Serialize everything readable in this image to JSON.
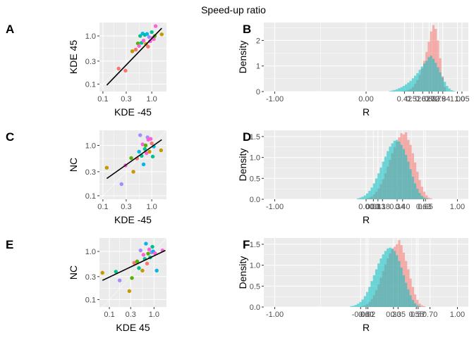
{
  "figure": {
    "title": "Speed-up ratio"
  },
  "colors": {
    "panel_bg": "#ebebeb",
    "grid": "#ffffff",
    "series_1": "#f8766d",
    "series_2": "#00bfc4",
    "point_palette": [
      "#f8766d",
      "#c49a00",
      "#53b400",
      "#00c094",
      "#00b6eb",
      "#a58aff",
      "#fb61d7"
    ],
    "fit_line": "#000000"
  },
  "chart_data": [
    {
      "panel": "A",
      "type": "scatter",
      "xlabel": "KDE -45",
      "ylabel": "KDE 45",
      "scale": "log10",
      "xlim": [
        0.085,
        2.0
      ],
      "ylim": [
        0.07,
        1.9
      ],
      "x_ticks": [
        "0.1",
        "0.3",
        "1.0"
      ],
      "x_tick_values": [
        0.1,
        0.3,
        1.0
      ],
      "y_ticks": [
        "0.1",
        "0.3",
        "1.0"
      ],
      "y_tick_values": [
        0.1,
        0.3,
        1.0
      ],
      "fit_line": {
        "x": [
          0.12,
          1.6
        ],
        "y": [
          0.095,
          1.45
        ]
      },
      "points": [
        {
          "x": 0.1,
          "y": 0.065,
          "c": 1
        },
        {
          "x": 0.21,
          "y": 0.21,
          "c": 0
        },
        {
          "x": 0.29,
          "y": 0.19,
          "c": 0
        },
        {
          "x": 0.4,
          "y": 0.48,
          "c": 1
        },
        {
          "x": 0.47,
          "y": 0.52,
          "c": 0
        },
        {
          "x": 0.52,
          "y": 0.7,
          "c": 2
        },
        {
          "x": 0.55,
          "y": 0.62,
          "c": 6
        },
        {
          "x": 0.58,
          "y": 1.0,
          "c": 3
        },
        {
          "x": 0.62,
          "y": 0.72,
          "c": 3
        },
        {
          "x": 0.65,
          "y": 1.12,
          "c": 4
        },
        {
          "x": 0.68,
          "y": 0.8,
          "c": 6
        },
        {
          "x": 0.72,
          "y": 1.05,
          "c": 3
        },
        {
          "x": 0.76,
          "y": 0.68,
          "c": 1
        },
        {
          "x": 0.8,
          "y": 1.1,
          "c": 4
        },
        {
          "x": 0.84,
          "y": 0.6,
          "c": 0
        },
        {
          "x": 0.88,
          "y": 0.95,
          "c": 5
        },
        {
          "x": 0.93,
          "y": 0.78,
          "c": 6
        },
        {
          "x": 1.0,
          "y": 1.2,
          "c": 3
        },
        {
          "x": 1.05,
          "y": 0.92,
          "c": 6
        },
        {
          "x": 1.1,
          "y": 0.86,
          "c": 6
        },
        {
          "x": 1.15,
          "y": 1.0,
          "c": 2
        },
        {
          "x": 1.2,
          "y": 1.6,
          "c": 6
        },
        {
          "x": 1.6,
          "y": 1.08,
          "c": 1
        }
      ]
    },
    {
      "panel": "B",
      "type": "histogram",
      "xlabel": "R",
      "ylabel": "Density",
      "xlim": [
        -1.12,
        1.12
      ],
      "ylim": [
        0,
        2.7
      ],
      "x_ticks": [
        "-1.00",
        "0.00",
        "0.42",
        "0.52",
        "0.62",
        "0.69",
        "0.72",
        "0.79",
        "0.84",
        "1.00",
        "1.05"
      ],
      "x_tick_values": [
        -1.0,
        0.0,
        0.42,
        0.52,
        0.62,
        0.69,
        0.72,
        0.79,
        0.84,
        1.0,
        1.05
      ],
      "y_ticks": [
        "0",
        "1",
        "2"
      ],
      "y_tick_values": [
        0,
        1,
        2
      ],
      "series": [
        {
          "name": "",
          "x": [
            0.4,
            0.425,
            0.45,
            0.475,
            0.5,
            0.525,
            0.55,
            0.575,
            0.6,
            0.625,
            0.65,
            0.675,
            0.7,
            0.725,
            0.75,
            0.775,
            0.8,
            0.825,
            0.85
          ],
          "values": [
            0.02,
            0.03,
            0.06,
            0.1,
            0.18,
            0.3,
            0.45,
            0.65,
            0.9,
            1.2,
            1.55,
            1.95,
            2.35,
            2.6,
            2.45,
            2.0,
            1.3,
            0.6,
            0.18
          ]
        },
        {
          "name": "",
          "x": [
            0.25,
            0.275,
            0.3,
            0.325,
            0.35,
            0.375,
            0.4,
            0.425,
            0.45,
            0.475,
            0.5,
            0.525,
            0.55,
            0.575,
            0.6,
            0.625,
            0.65,
            0.675,
            0.7,
            0.725,
            0.75,
            0.775,
            0.8,
            0.825,
            0.85,
            0.875,
            0.9,
            0.925,
            0.95
          ],
          "values": [
            0.02,
            0.04,
            0.06,
            0.09,
            0.13,
            0.17,
            0.22,
            0.28,
            0.35,
            0.42,
            0.52,
            0.62,
            0.72,
            0.85,
            0.98,
            1.1,
            1.2,
            1.35,
            1.4,
            1.28,
            1.12,
            0.95,
            0.75,
            0.55,
            0.38,
            0.22,
            0.12,
            0.05,
            0.02
          ]
        }
      ]
    },
    {
      "panel": "C",
      "type": "scatter",
      "xlabel": "KDE -45",
      "ylabel": "NC",
      "scale": "log10",
      "xlim": [
        0.085,
        2.0
      ],
      "ylim": [
        0.085,
        2.0
      ],
      "x_ticks": [
        "0.1",
        "0.3",
        "1.0"
      ],
      "x_tick_values": [
        0.1,
        0.3,
        1.0
      ],
      "y_ticks": [
        "0.1",
        "0.3",
        "1.0"
      ],
      "y_tick_values": [
        0.1,
        0.3,
        1.0
      ],
      "fit_line": {
        "x": [
          0.12,
          1.6
        ],
        "y": [
          0.22,
          1.3
        ]
      },
      "points": [
        {
          "x": 0.12,
          "y": 0.36,
          "c": 1
        },
        {
          "x": 0.24,
          "y": 0.17,
          "c": 5
        },
        {
          "x": 0.29,
          "y": 0.4,
          "c": 6
        },
        {
          "x": 0.38,
          "y": 0.56,
          "c": 2
        },
        {
          "x": 0.42,
          "y": 0.3,
          "c": 1
        },
        {
          "x": 0.5,
          "y": 0.55,
          "c": 0
        },
        {
          "x": 0.55,
          "y": 0.75,
          "c": 4
        },
        {
          "x": 0.58,
          "y": 1.6,
          "c": 5
        },
        {
          "x": 0.62,
          "y": 0.62,
          "c": 3
        },
        {
          "x": 0.65,
          "y": 1.05,
          "c": 6
        },
        {
          "x": 0.68,
          "y": 0.42,
          "c": 4
        },
        {
          "x": 0.72,
          "y": 0.85,
          "c": 3
        },
        {
          "x": 0.75,
          "y": 1.0,
          "c": 2
        },
        {
          "x": 0.78,
          "y": 0.7,
          "c": 6
        },
        {
          "x": 0.82,
          "y": 1.45,
          "c": 5
        },
        {
          "x": 0.85,
          "y": 1.3,
          "c": 6
        },
        {
          "x": 0.9,
          "y": 0.75,
          "c": 1
        },
        {
          "x": 0.95,
          "y": 1.35,
          "c": 6
        },
        {
          "x": 1.0,
          "y": 1.1,
          "c": 0
        },
        {
          "x": 1.05,
          "y": 0.6,
          "c": 3
        },
        {
          "x": 1.1,
          "y": 0.95,
          "c": 4
        },
        {
          "x": 1.55,
          "y": 0.8,
          "c": 1
        }
      ]
    },
    {
      "panel": "D",
      "type": "histogram",
      "xlabel": "R",
      "ylabel": "Density",
      "xlim": [
        -1.12,
        1.12
      ],
      "ylim": [
        0,
        1.65
      ],
      "x_ticks": [
        "-1.00",
        "0.00",
        "0.08",
        "0.13",
        "0.18",
        "0.34",
        "0.40",
        "0.63",
        "0.65",
        "1.00"
      ],
      "x_tick_values": [
        -1.0,
        0.0,
        0.08,
        0.13,
        0.18,
        0.34,
        0.4,
        0.63,
        0.65,
        1.0
      ],
      "y_ticks": [
        "0.0",
        "0.5",
        "1.0",
        "1.5"
      ],
      "y_tick_values": [
        0.0,
        0.5,
        1.0,
        1.5
      ],
      "series": [
        {
          "name": "",
          "x": [
            0.0,
            0.025,
            0.05,
            0.075,
            0.1,
            0.125,
            0.15,
            0.175,
            0.2,
            0.225,
            0.25,
            0.275,
            0.3,
            0.325,
            0.35,
            0.375,
            0.4,
            0.425,
            0.45,
            0.475,
            0.5,
            0.525,
            0.55,
            0.575,
            0.6,
            0.625,
            0.65,
            0.675,
            0.7
          ],
          "values": [
            0.02,
            0.04,
            0.07,
            0.12,
            0.18,
            0.26,
            0.36,
            0.48,
            0.62,
            0.78,
            0.94,
            1.1,
            1.25,
            1.38,
            1.48,
            1.58,
            1.55,
            1.6,
            1.42,
            1.3,
            1.1,
            0.88,
            0.66,
            0.46,
            0.3,
            0.18,
            0.09,
            0.04,
            0.02
          ]
        },
        {
          "name": "",
          "x": [
            -0.1,
            -0.075,
            -0.05,
            -0.025,
            0.0,
            0.025,
            0.05,
            0.075,
            0.1,
            0.125,
            0.15,
            0.175,
            0.2,
            0.225,
            0.25,
            0.275,
            0.3,
            0.325,
            0.35,
            0.375,
            0.4,
            0.425,
            0.45,
            0.475,
            0.5,
            0.525,
            0.55,
            0.575,
            0.6,
            0.625,
            0.65
          ],
          "values": [
            0.02,
            0.04,
            0.06,
            0.09,
            0.14,
            0.2,
            0.28,
            0.38,
            0.5,
            0.62,
            0.76,
            0.9,
            1.02,
            1.15,
            1.26,
            1.34,
            1.4,
            1.42,
            1.38,
            1.3,
            1.2,
            1.06,
            0.9,
            0.72,
            0.54,
            0.38,
            0.25,
            0.15,
            0.08,
            0.04,
            0.02
          ]
        }
      ]
    },
    {
      "panel": "E",
      "type": "scatter",
      "xlabel": "KDE 45",
      "ylabel": "NC",
      "scale": "log10",
      "xlim": [
        0.06,
        1.9
      ],
      "ylim": [
        0.07,
        1.9
      ],
      "x_ticks": [
        "0.1",
        "0.3",
        "1.0"
      ],
      "x_tick_values": [
        0.1,
        0.3,
        1.0
      ],
      "y_ticks": [
        "0.1",
        "0.3",
        "1.0"
      ],
      "y_tick_values": [
        0.1,
        0.3,
        1.0
      ],
      "fit_line": {
        "x": [
          0.07,
          1.8
        ],
        "y": [
          0.25,
          1.05
        ]
      },
      "points": [
        {
          "x": 0.07,
          "y": 0.36,
          "c": 1
        },
        {
          "x": 0.14,
          "y": 0.38,
          "c": 3
        },
        {
          "x": 0.17,
          "y": 0.25,
          "c": 5
        },
        {
          "x": 0.28,
          "y": 0.15,
          "c": 1
        },
        {
          "x": 0.32,
          "y": 0.28,
          "c": 2
        },
        {
          "x": 0.36,
          "y": 0.58,
          "c": 0
        },
        {
          "x": 0.42,
          "y": 0.62,
          "c": 2
        },
        {
          "x": 0.46,
          "y": 0.45,
          "c": 3
        },
        {
          "x": 0.5,
          "y": 1.05,
          "c": 5
        },
        {
          "x": 0.55,
          "y": 0.4,
          "c": 1
        },
        {
          "x": 0.58,
          "y": 0.85,
          "c": 6
        },
        {
          "x": 0.62,
          "y": 0.7,
          "c": 3
        },
        {
          "x": 0.66,
          "y": 1.45,
          "c": 4
        },
        {
          "x": 0.7,
          "y": 0.56,
          "c": 0
        },
        {
          "x": 0.74,
          "y": 0.9,
          "c": 2
        },
        {
          "x": 0.78,
          "y": 1.1,
          "c": 6
        },
        {
          "x": 0.82,
          "y": 0.75,
          "c": 3
        },
        {
          "x": 0.88,
          "y": 0.95,
          "c": 5
        },
        {
          "x": 0.92,
          "y": 1.25,
          "c": 3
        },
        {
          "x": 0.96,
          "y": 1.0,
          "c": 4
        },
        {
          "x": 1.05,
          "y": 0.92,
          "c": 6
        },
        {
          "x": 1.15,
          "y": 0.4,
          "c": 4
        },
        {
          "x": 1.55,
          "y": 1.05,
          "c": 6
        }
      ]
    },
    {
      "panel": "F",
      "type": "histogram",
      "xlabel": "R",
      "ylabel": "Density",
      "xlim": [
        -1.12,
        1.12
      ],
      "ylim": [
        0,
        1.65
      ],
      "x_ticks": [
        "-1.00",
        "-0.06",
        "0.00",
        "0.02",
        "0.30",
        "0.35",
        "0.55",
        "0.57",
        "0.70",
        "1.00"
      ],
      "x_tick_values": [
        -1.0,
        -0.06,
        0.0,
        0.02,
        0.3,
        0.35,
        0.55,
        0.57,
        0.7,
        1.0
      ],
      "y_ticks": [
        "0.0",
        "0.5",
        "1.0",
        "1.5"
      ],
      "y_tick_values": [
        0.0,
        0.5,
        1.0,
        1.5
      ],
      "series": [
        {
          "name": "",
          "x": [
            -0.05,
            -0.025,
            0.0,
            0.025,
            0.05,
            0.075,
            0.1,
            0.125,
            0.15,
            0.175,
            0.2,
            0.225,
            0.25,
            0.275,
            0.3,
            0.325,
            0.35,
            0.375,
            0.4,
            0.425,
            0.45,
            0.475,
            0.5,
            0.525,
            0.55,
            0.575,
            0.6,
            0.625
          ],
          "values": [
            0.02,
            0.04,
            0.07,
            0.12,
            0.19,
            0.28,
            0.4,
            0.54,
            0.7,
            0.86,
            1.02,
            1.16,
            1.28,
            1.38,
            1.44,
            1.5,
            1.6,
            1.48,
            1.3,
            1.1,
            0.9,
            0.68,
            0.48,
            0.3,
            0.17,
            0.08,
            0.04,
            0.02
          ]
        },
        {
          "name": "",
          "x": [
            -0.175,
            -0.15,
            -0.125,
            -0.1,
            -0.075,
            -0.05,
            -0.025,
            0.0,
            0.025,
            0.05,
            0.075,
            0.1,
            0.125,
            0.15,
            0.175,
            0.2,
            0.225,
            0.25,
            0.275,
            0.3,
            0.325,
            0.35,
            0.375,
            0.4,
            0.425,
            0.45,
            0.475,
            0.5,
            0.525,
            0.55,
            0.575
          ],
          "values": [
            0.02,
            0.03,
            0.05,
            0.08,
            0.12,
            0.18,
            0.26,
            0.36,
            0.48,
            0.62,
            0.76,
            0.9,
            1.04,
            1.16,
            1.26,
            1.34,
            1.4,
            1.42,
            1.4,
            1.34,
            1.24,
            1.1,
            0.94,
            0.76,
            0.58,
            0.42,
            0.28,
            0.17,
            0.09,
            0.04,
            0.02
          ]
        }
      ]
    }
  ]
}
